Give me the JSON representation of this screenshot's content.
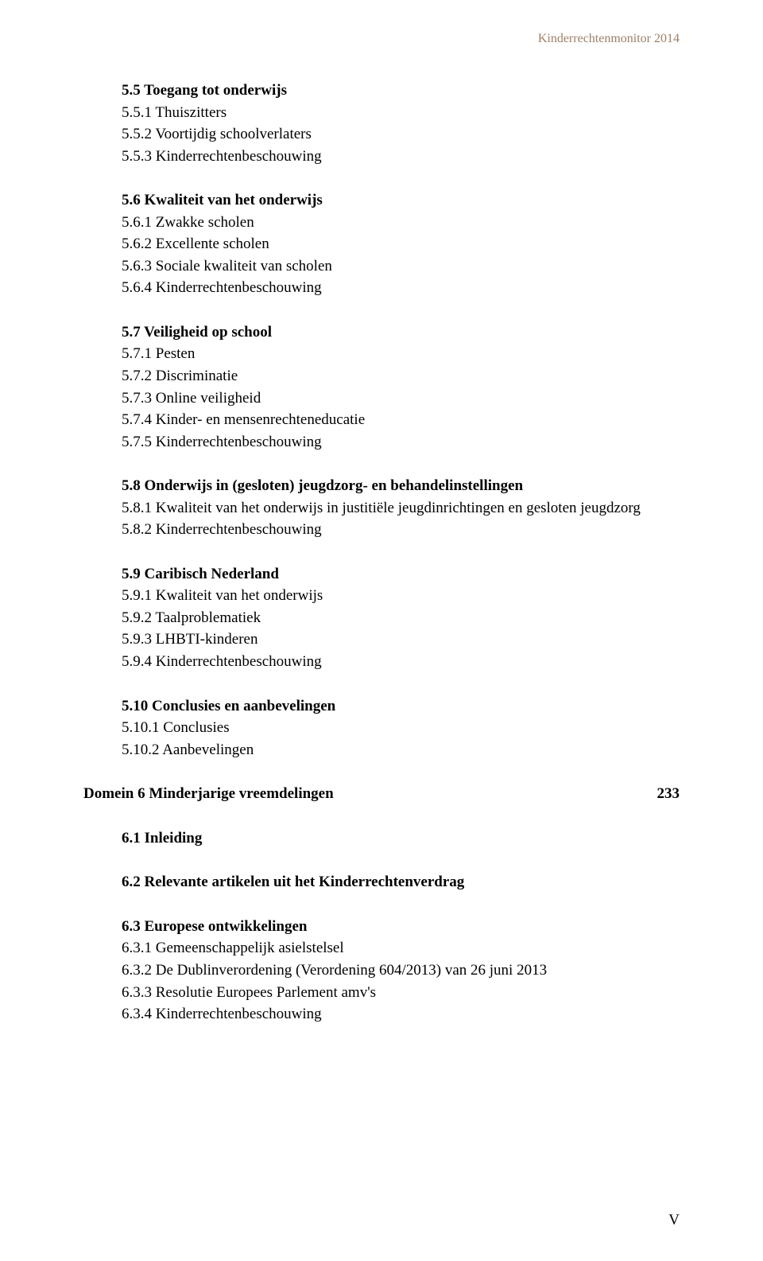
{
  "header": {
    "text": "Kinderrechtenmonitor 2014",
    "color": "#9f8069"
  },
  "sections": {
    "s55": {
      "head": "5.5 Toegang tot onderwijs",
      "items": [
        "5.5.1 Thuiszitters",
        "5.5.2 Voortijdig schoolverlaters",
        "5.5.3 Kinderrechtenbeschouwing"
      ]
    },
    "s56": {
      "head": "5.6 Kwaliteit van het onderwijs",
      "items": [
        "5.6.1 Zwakke scholen",
        "5.6.2 Excellente scholen",
        "5.6.3 Sociale kwaliteit van scholen",
        "5.6.4 Kinderrechtenbeschouwing"
      ]
    },
    "s57": {
      "head": "5.7 Veiligheid op school",
      "items": [
        "5.7.1 Pesten",
        "5.7.2 Discriminatie",
        "5.7.3 Online veiligheid",
        "5.7.4 Kinder- en mensenrechteneducatie",
        "5.7.5 Kinderrechtenbeschouwing"
      ]
    },
    "s58": {
      "head": "5.8 Onderwijs in (gesloten) jeugdzorg- en behandelinstellingen",
      "items": [
        "5.8.1 Kwaliteit van het onderwijs in justitiële jeugdinrichtingen en gesloten jeugdzorg",
        "5.8.2 Kinderrechtenbeschouwing"
      ]
    },
    "s59": {
      "head": "5.9 Caribisch Nederland",
      "items": [
        "5.9.1 Kwaliteit van het onderwijs",
        "5.9.2 Taalproblematiek",
        "5.9.3 LHBTI-kinderen",
        "5.9.4 Kinderrechtenbeschouwing"
      ]
    },
    "s510": {
      "head": "5.10 Conclusies en aanbevelingen",
      "items": [
        "5.10.1 Conclusies",
        "5.10.2 Aanbevelingen"
      ]
    }
  },
  "domain6": {
    "title": "Domein 6 Minderjarige vreemdelingen",
    "page": "233"
  },
  "sub6": {
    "s61": {
      "head": "6.1 Inleiding"
    },
    "s62": {
      "head": "6.2 Relevante artikelen uit het Kinderrechtenverdrag"
    },
    "s63": {
      "head": "6.3 Europese ontwikkelingen",
      "items": [
        "6.3.1 Gemeenschappelijk asielstelsel",
        "6.3.2 De Dublinverordening (Verordening 604/2013) van 26 juni 2013",
        "6.3.3 Resolutie Europees Parlement amv's",
        "6.3.4 Kinderrechtenbeschouwing"
      ]
    }
  },
  "footer": {
    "page": "V"
  }
}
